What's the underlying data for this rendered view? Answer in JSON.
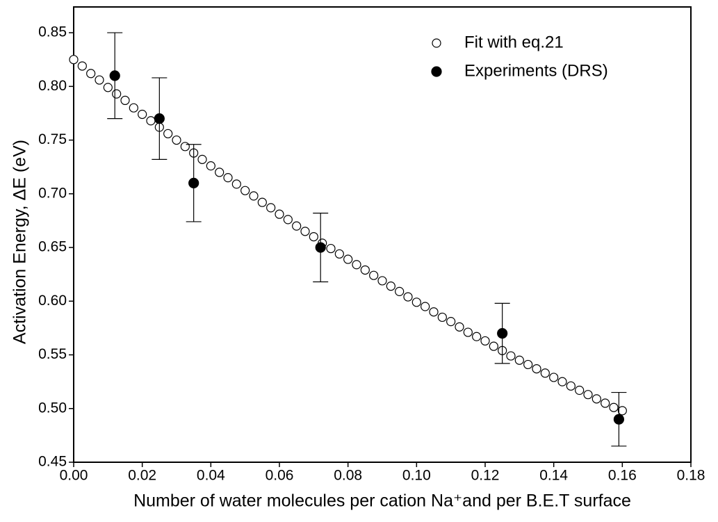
{
  "chart_data": {
    "type": "scatter",
    "x_label": "Number of water molecules per cation Na⁺and per B.E.T  surface",
    "y_label": "Activation Energy, ΔE (eV)",
    "xlim": [
      0,
      0.18
    ],
    "ylim": [
      0.45,
      0.874
    ],
    "xticks": [
      {
        "value": 0,
        "label": "0.00"
      },
      0.02,
      0.04,
      0.06,
      0.08,
      {
        "value": 0.1,
        "label": "0.10"
      },
      0.12,
      0.14,
      0.16,
      0.18
    ],
    "yticks": [
      0.45,
      {
        "value": 0.5,
        "label": "0.50"
      },
      0.55,
      {
        "value": 0.6,
        "label": "0.60"
      },
      0.65,
      {
        "value": 0.7,
        "label": "0.70"
      },
      0.75,
      {
        "value": 0.8,
        "label": "0.80"
      },
      0.85
    ],
    "legend": "upper right",
    "series": [
      {
        "name": "Fit with eq.21",
        "color": "#ffffff",
        "marker": "open",
        "x": [
          0,
          0.0025,
          0.005,
          0.0075,
          0.01,
          0.0125,
          0.015,
          0.0175,
          0.02,
          0.0225,
          0.025,
          0.0275,
          0.03,
          0.0325,
          0.035,
          0.0375,
          0.04,
          0.0425,
          0.045,
          0.0475,
          0.05,
          0.0525,
          0.055,
          0.0575,
          0.06,
          0.0625,
          0.065,
          0.0675,
          0.07,
          0.0725,
          0.075,
          0.0775,
          0.08,
          0.0825,
          0.085,
          0.0875,
          0.09,
          0.0925,
          0.095,
          0.0975,
          0.1,
          0.1025,
          0.105,
          0.1075,
          0.11,
          0.1125,
          0.115,
          0.1175,
          0.12,
          0.1225,
          0.125,
          0.1275,
          0.13,
          0.1325,
          0.135,
          0.1375,
          0.14,
          0.1425,
          0.145,
          0.1475,
          0.15,
          0.1525,
          0.155,
          0.1575,
          0.16
        ],
        "values": [
          0.825,
          0.819,
          0.812,
          0.806,
          0.799,
          0.793,
          0.787,
          0.78,
          0.774,
          0.768,
          0.762,
          0.756,
          0.75,
          0.744,
          0.738,
          0.732,
          0.726,
          0.72,
          0.715,
          0.709,
          0.703,
          0.698,
          0.692,
          0.687,
          0.681,
          0.676,
          0.67,
          0.665,
          0.66,
          0.654,
          0.649,
          0.644,
          0.639,
          0.634,
          0.629,
          0.624,
          0.619,
          0.614,
          0.609,
          0.604,
          0.599,
          0.595,
          0.59,
          0.585,
          0.581,
          0.576,
          0.571,
          0.567,
          0.563,
          0.558,
          0.554,
          0.549,
          0.545,
          0.541,
          0.537,
          0.533,
          0.529,
          0.525,
          0.521,
          0.517,
          0.513,
          0.509,
          0.505,
          0.501,
          0.498
        ]
      },
      {
        "name": "Experiments (DRS)",
        "color": "#000000",
        "marker": "filled",
        "x": [
          0.012,
          0.025,
          0.035,
          0.072,
          0.125,
          0.159
        ],
        "values": [
          0.81,
          0.77,
          0.71,
          0.65,
          0.57,
          0.49
        ],
        "errors": [
          0.04,
          0.038,
          0.036,
          0.032,
          0.028,
          0.025
        ]
      }
    ]
  }
}
